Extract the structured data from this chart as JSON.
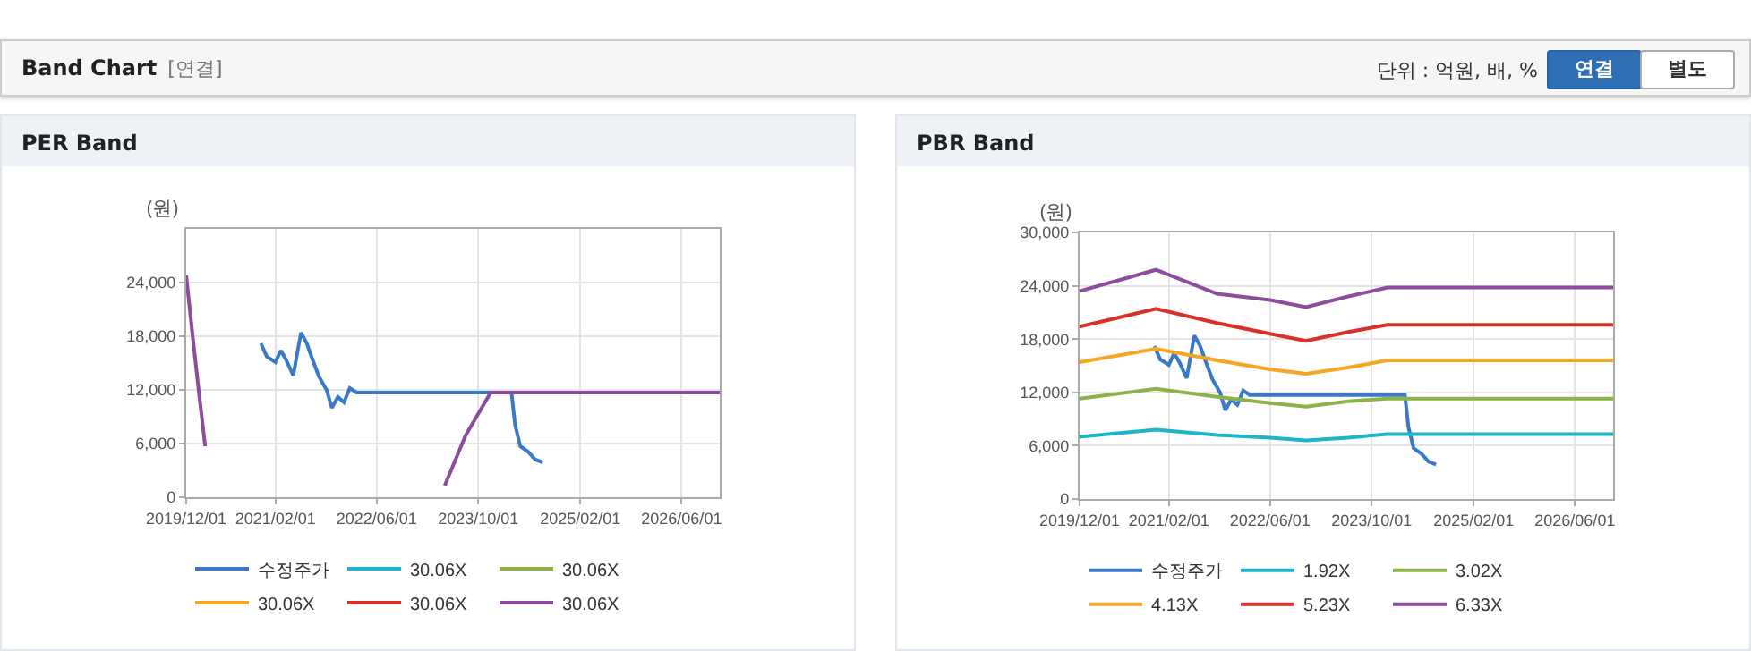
{
  "chart_data": [
    {
      "type": "other",
      "title": "Band Chart",
      "subtitle": "[연결]",
      "annotations": [
        "단위 : 억원, 배, %",
        "연결",
        "별도"
      ]
    },
    {
      "type": "line",
      "title": "PER Band",
      "ylabel": "(원)",
      "xlim": [
        "2019-12-01",
        "2026-12-01"
      ],
      "ylim": [
        0,
        30000
      ],
      "xticks": [
        {
          "value": "2019-12-01",
          "label": "2019/12/01"
        },
        {
          "value": "2021-02-01",
          "label": "2021/02/01"
        },
        {
          "value": "2022-06-01",
          "label": "2022/06/01"
        },
        {
          "value": "2023-10-01",
          "label": "2023/10/01"
        },
        {
          "value": "2025-02-01",
          "label": "2025/02/01"
        },
        {
          "value": "2026-06-01",
          "label": "2026/06/01"
        }
      ],
      "yticks": [
        0,
        {
          "value": 6000,
          "label": "6,000"
        },
        {
          "value": 12000,
          "label": "12,000"
        },
        {
          "value": 18000,
          "label": "18,000"
        },
        {
          "value": 24000,
          "label": "24,000"
        }
      ],
      "grid": true,
      "legend": "bottom",
      "series": [
        {
          "name": "수정주가",
          "color": "#3a78c9",
          "x": [
            "2020-11-23",
            "2020-12-22",
            "2021-02-01",
            "2021-02-26",
            "2021-03-23",
            "2021-04-27",
            "2021-06-03",
            "2021-07-01",
            "2021-07-30",
            "2021-08-28",
            "2021-10-04",
            "2021-10-29",
            "2021-11-27",
            "2021-12-26",
            "2022-01-23",
            "2022-02-24",
            "2024-03-08",
            "2024-03-25",
            "2024-04-19",
            "2024-05-26",
            "2024-06-30",
            "2024-08-04"
          ],
          "values": [
            17200,
            15700,
            15100,
            16400,
            15400,
            13600,
            18400,
            17200,
            15300,
            13500,
            12000,
            10000,
            11200,
            10600,
            12200,
            11700,
            11700,
            8100,
            5700,
            5100,
            4200,
            3900
          ]
        },
        {
          "name": "30.06X",
          "color": "#1fb5c8"
        },
        {
          "name": "30.06X",
          "color": "#8cb34a"
        },
        {
          "name": "30.06X",
          "color": "#f5a623"
        },
        {
          "name": "30.06X",
          "color": "#d9302a"
        },
        {
          "name": "30.06X",
          "color": "#8e4c9e",
          "x": [
            "2019-12-01",
            "2020-01-01",
            "2020-02-01",
            "2020-03-01",
            null,
            "2023-04-23",
            "2023-08-01",
            "2023-11-29",
            "2026-12-01"
          ],
          "values": [
            24800,
            18000,
            11500,
            5700,
            null,
            1300,
            6900,
            11700,
            11700
          ]
        }
      ]
    },
    {
      "type": "line",
      "title": "PBR Band",
      "ylabel": "(원)",
      "xlim": [
        "2019-12-01",
        "2026-12-01"
      ],
      "ylim": [
        0,
        30000
      ],
      "xticks": [
        {
          "value": "2019-12-01",
          "label": "2019/12/01"
        },
        {
          "value": "2021-02-01",
          "label": "2021/02/01"
        },
        {
          "value": "2022-06-01",
          "label": "2022/06/01"
        },
        {
          "value": "2023-10-01",
          "label": "2023/10/01"
        },
        {
          "value": "2025-02-01",
          "label": "2025/02/01"
        },
        {
          "value": "2026-06-01",
          "label": "2026/06/01"
        }
      ],
      "yticks": [
        0,
        {
          "value": 6000,
          "label": "6,000"
        },
        {
          "value": 12000,
          "label": "12,000"
        },
        {
          "value": 18000,
          "label": "18,000"
        },
        {
          "value": 24000,
          "label": "24,000"
        },
        {
          "value": 30000,
          "label": "30,000"
        }
      ],
      "grid": true,
      "legend": "bottom",
      "series": [
        {
          "name": "수정주가",
          "color": "#3a78c9",
          "x": [
            "2020-11-23",
            "2020-12-22",
            "2021-02-01",
            "2021-02-26",
            "2021-03-23",
            "2021-04-27",
            "2021-06-03",
            "2021-07-01",
            "2021-07-30",
            "2021-08-28",
            "2021-10-04",
            "2021-10-29",
            "2021-11-27",
            "2021-12-26",
            "2022-01-23",
            "2022-02-24",
            "2024-03-08",
            "2024-03-25",
            "2024-04-19",
            "2024-05-26",
            "2024-06-30",
            "2024-08-04"
          ],
          "values": [
            17200,
            15700,
            15100,
            16400,
            15400,
            13600,
            18400,
            17200,
            15300,
            13500,
            12000,
            10000,
            11200,
            10600,
            12200,
            11700,
            11700,
            8100,
            5700,
            5100,
            4200,
            3900
          ]
        },
        {
          "name": "1.92X",
          "color": "#1fb5c8",
          "x": [
            "2019-12-01",
            "2020-12-01",
            "2021-09-20",
            "2022-06-01",
            "2022-11-20",
            "2023-06-10",
            "2023-12-15",
            "2026-12-01"
          ],
          "values": [
            7000,
            7800,
            7200,
            6900,
            6600,
            6900,
            7300,
            7300
          ]
        },
        {
          "name": "3.02X",
          "color": "#8cb34a",
          "x": [
            "2019-12-01",
            "2020-12-01",
            "2021-09-20",
            "2022-06-01",
            "2022-11-20",
            "2023-06-10",
            "2023-12-15",
            "2026-12-01"
          ],
          "values": [
            11300,
            12400,
            11500,
            10800,
            10400,
            11000,
            11300,
            11300
          ]
        },
        {
          "name": "4.13X",
          "color": "#f5a623",
          "x": [
            "2019-12-01",
            "2020-12-01",
            "2021-09-20",
            "2022-06-01",
            "2022-11-20",
            "2023-06-10",
            "2023-12-15",
            "2026-12-01"
          ],
          "values": [
            15400,
            16900,
            15600,
            14600,
            14100,
            14800,
            15600,
            15600
          ]
        },
        {
          "name": "5.23X",
          "color": "#d9302a",
          "x": [
            "2019-12-01",
            "2020-12-01",
            "2021-09-20",
            "2022-06-01",
            "2022-11-20",
            "2023-06-10",
            "2023-12-15",
            "2026-12-01"
          ],
          "values": [
            19400,
            21400,
            19800,
            18600,
            17800,
            18800,
            19600,
            19600
          ]
        },
        {
          "name": "6.33X",
          "color": "#8e4c9e",
          "x": [
            "2019-12-01",
            "2020-12-01",
            "2021-09-20",
            "2022-06-01",
            "2022-11-20",
            "2023-06-10",
            "2023-12-15",
            "2026-12-01"
          ],
          "values": [
            23400,
            25800,
            23100,
            22400,
            21600,
            22800,
            23800,
            23800
          ]
        }
      ]
    }
  ]
}
